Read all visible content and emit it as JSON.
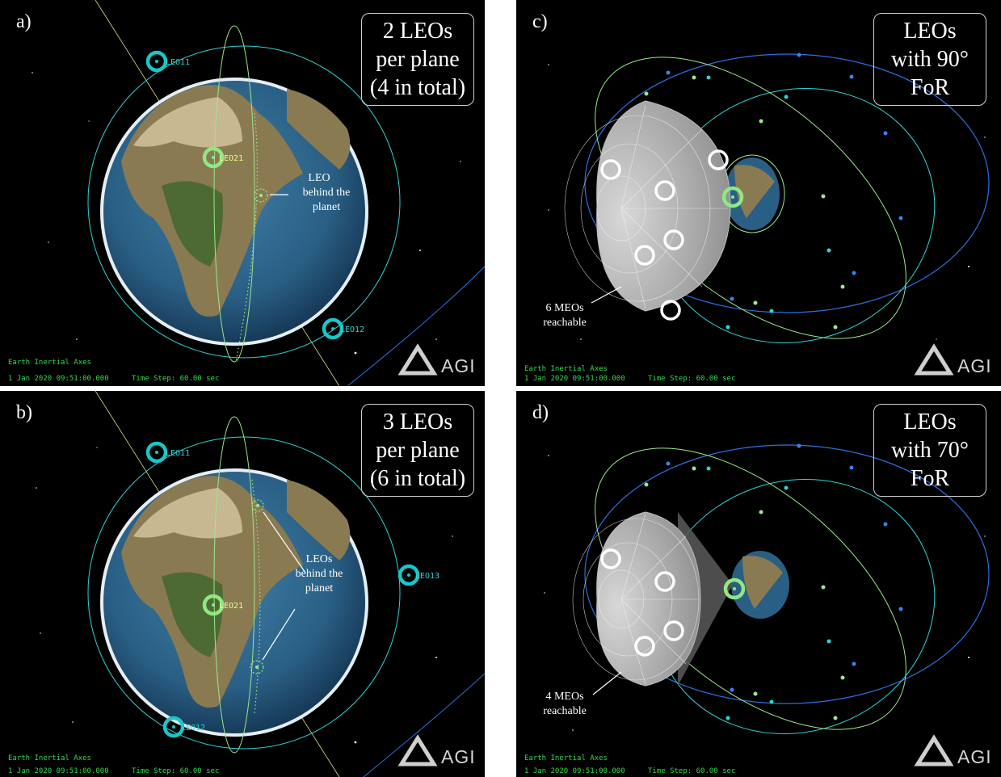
{
  "colors": {
    "space": "#000000",
    "cyan_orbit": "#2ed4d4",
    "green_orbit": "#9be88f",
    "blue_orbit": "#2e6fe0",
    "hud_text": "#2fdc4a",
    "frame": "#ffffff"
  },
  "panels": {
    "a": {
      "label": "a)",
      "box_lines": [
        "2 LEOs",
        "per plane",
        "(4 in total)"
      ],
      "leos": [
        "LEO11",
        "LEO21",
        "LEO12"
      ],
      "annotation": [
        "LEO",
        "behind the",
        "planet"
      ]
    },
    "b": {
      "label": "b)",
      "box_lines": [
        "3 LEOs",
        "per plane",
        "(6 in total)"
      ],
      "leos": [
        "LEO11",
        "LEO21",
        "LEO13",
        "LEO12"
      ],
      "annotation": [
        "LEOs",
        "behind the",
        "planet"
      ]
    },
    "c": {
      "label": "c)",
      "box_lines": [
        "LEOs",
        "with 90°",
        "FoR"
      ],
      "annotation": [
        "6 MEOs",
        "reachable"
      ]
    },
    "d": {
      "label": "d)",
      "box_lines": [
        "LEOs",
        "with 70°",
        "FoR"
      ],
      "annotation": [
        "4 MEOs",
        "reachable"
      ]
    }
  },
  "hud": {
    "axes": "Earth Inertial Axes",
    "datetime": "1 Jan 2020 09:51:00.000",
    "timestep": "Time Step: 60.00 sec"
  },
  "logo": "AGI"
}
